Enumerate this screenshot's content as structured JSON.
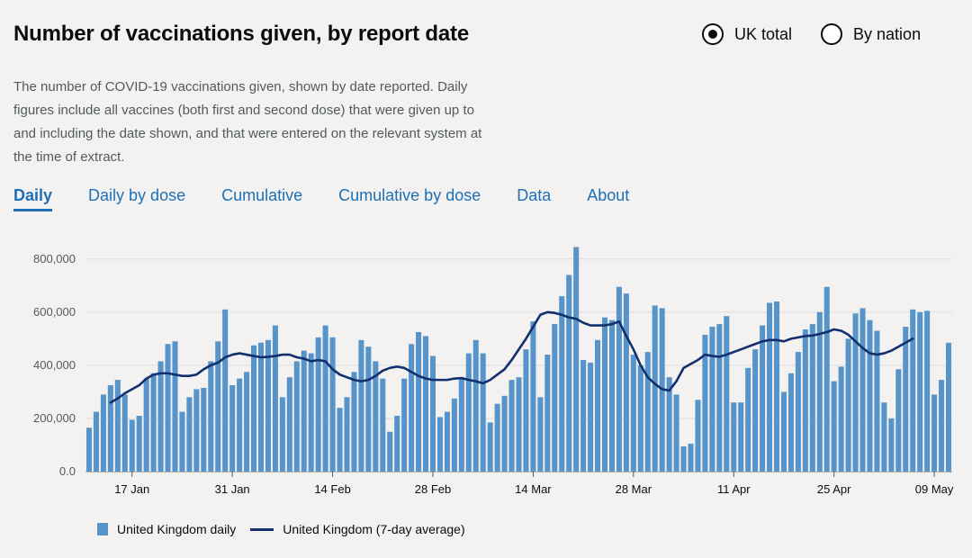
{
  "header": {
    "title": "Number of vaccinations given, by report date",
    "description": "The number of COVID-19 vaccinations given, shown by date reported. Daily figures include all vaccines (both first and second dose) that were given up to and including the date shown, and that were entered on the relevant system at the time of extract."
  },
  "radios": [
    {
      "label": "UK total",
      "checked": true
    },
    {
      "label": "By nation",
      "checked": false
    }
  ],
  "tabs": [
    {
      "label": "Daily",
      "active": true
    },
    {
      "label": "Daily by dose",
      "active": false
    },
    {
      "label": "Cumulative",
      "active": false
    },
    {
      "label": "Cumulative by dose",
      "active": false
    },
    {
      "label": "Data",
      "active": false
    },
    {
      "label": "About",
      "active": false
    }
  ],
  "colors": {
    "bar": "#5694ca",
    "line": "#12306d",
    "link": "#1d70b8"
  },
  "chart_data": {
    "type": "bar",
    "title": "",
    "xlabel": "",
    "ylabel": "",
    "ylim": [
      0,
      850000
    ],
    "yticks": [
      0,
      200000,
      400000,
      600000,
      800000
    ],
    "ytick_labels": [
      "0.0",
      "200,000",
      "400,000",
      "600,000",
      "800,000"
    ],
    "x_start": "2021-01-11",
    "xtick_labels": [
      "17 Jan",
      "31 Jan",
      "14 Feb",
      "28 Feb",
      "14 Mar",
      "28 Mar",
      "11 Apr",
      "25 Apr",
      "09 May"
    ],
    "xtick_indices": [
      6,
      20,
      34,
      48,
      62,
      76,
      90,
      104,
      118
    ],
    "legend_position": "bottom-left",
    "series": [
      {
        "name": "United Kingdom daily",
        "type": "bar",
        "values": [
          165000,
          225000,
          290000,
          325000,
          345000,
          290000,
          195000,
          210000,
          350000,
          370000,
          415000,
          480000,
          490000,
          225000,
          280000,
          310000,
          315000,
          415000,
          490000,
          610000,
          325000,
          350000,
          375000,
          475000,
          485000,
          495000,
          550000,
          280000,
          355000,
          415000,
          455000,
          445000,
          505000,
          550000,
          505000,
          240000,
          280000,
          375000,
          495000,
          470000,
          415000,
          350000,
          150000,
          210000,
          350000,
          480000,
          525000,
          510000,
          435000,
          205000,
          225000,
          275000,
          355000,
          445000,
          495000,
          445000,
          185000,
          255000,
          285000,
          345000,
          355000,
          460000,
          565000,
          280000,
          440000,
          555000,
          660000,
          740000,
          845000,
          420000,
          410000,
          495000,
          580000,
          570000,
          695000,
          670000,
          440000,
          400000,
          450000,
          625000,
          615000,
          355000,
          290000,
          95000,
          105000,
          270000,
          515000,
          545000,
          555000,
          585000,
          260000,
          260000,
          390000,
          460000,
          550000,
          635000,
          640000,
          300000,
          370000,
          450000,
          535000,
          555000,
          600000,
          695000,
          340000,
          395000,
          500000,
          595000,
          615000,
          570000,
          530000,
          260000,
          200000,
          385000,
          545000,
          610000,
          600000,
          605000,
          290000,
          345000,
          485000
        ]
      },
      {
        "name": "United Kingdom (7-day average)",
        "type": "line",
        "start_index": 3,
        "values": [
          260000,
          275000,
          295000,
          310000,
          325000,
          350000,
          365000,
          370000,
          370000,
          365000,
          360000,
          360000,
          365000,
          385000,
          400000,
          410000,
          430000,
          440000,
          445000,
          440000,
          435000,
          430000,
          432000,
          435000,
          440000,
          440000,
          430000,
          425000,
          415000,
          420000,
          415000,
          385000,
          365000,
          355000,
          345000,
          340000,
          345000,
          360000,
          380000,
          390000,
          395000,
          390000,
          375000,
          360000,
          350000,
          345000,
          345000,
          345000,
          350000,
          352000,
          345000,
          340000,
          332000,
          345000,
          365000,
          385000,
          420000,
          460000,
          500000,
          545000,
          590000,
          600000,
          597000,
          590000,
          580000,
          575000,
          560000,
          550000,
          550000,
          550000,
          555000,
          565000,
          510000,
          460000,
          400000,
          355000,
          330000,
          310000,
          305000,
          340000,
          390000,
          405000,
          420000,
          440000,
          435000,
          432000,
          440000,
          450000,
          460000,
          470000,
          480000,
          490000,
          495000,
          495000,
          490000,
          500000,
          505000,
          510000,
          512000,
          518000,
          525000,
          535000,
          530000,
          515000,
          490000,
          465000,
          445000,
          440000,
          445000,
          455000,
          470000,
          485000,
          500000
        ]
      }
    ]
  },
  "legend": {
    "daily_label": "United Kingdom daily",
    "average_label": "United Kingdom (7-day average)"
  }
}
